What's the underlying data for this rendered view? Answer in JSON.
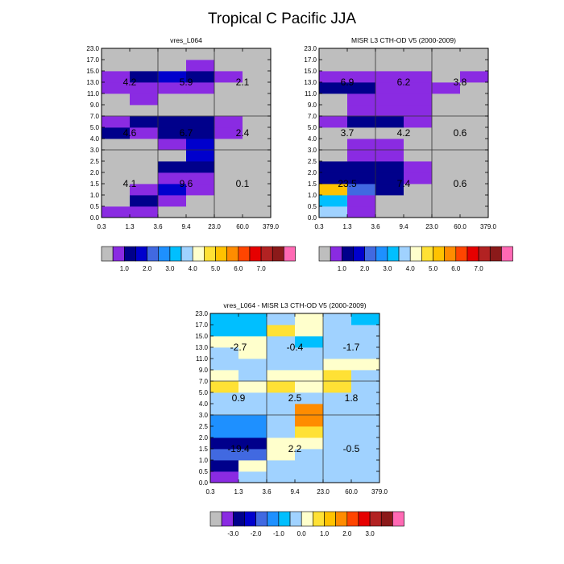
{
  "title": "Tropical C Pacific JJA",
  "colors": {
    "c0": "#bebebe",
    "c1": "#8a2be2",
    "c2": "#00008b",
    "c3": "#0000cd",
    "c4": "#4169e1",
    "c5": "#1e90ff",
    "c6": "#00bfff",
    "c7": "#a0d2ff",
    "c8": "#ffffcc",
    "c9": "#ffe135",
    "c10": "#ffc200",
    "c11": "#ff8c00",
    "c12": "#ff4500",
    "c13": "#e60000",
    "c14": "#b22222",
    "c15": "#8b1a1a",
    "c16": "#ff69b4"
  },
  "chart_data": [
    {
      "type": "heatmap",
      "title": "vres_L064",
      "x_ticks": [
        "0.3",
        "1.3",
        "3.6",
        "9.4",
        "23.0",
        "60.0",
        "379.0"
      ],
      "y_ticks": [
        "0.0",
        "0.5",
        "1.0",
        "1.5",
        "2.0",
        "2.5",
        "3.0",
        "4.0",
        "5.0",
        "7.0",
        "9.0",
        "11.0",
        "13.0",
        "15.0",
        "17.0",
        "23.0"
      ],
      "colorbar_labels": [
        "1.0",
        "2.0",
        "3.0",
        "4.0",
        "5.0",
        "6.0",
        "7.0"
      ],
      "grid": [
        [
          "c1",
          "c1",
          "c0",
          "c0",
          "c0",
          "c0"
        ],
        [
          "c0",
          "c2",
          "c1",
          "c0",
          "c0",
          "c0"
        ],
        [
          "c0",
          "c1",
          "c3",
          "c1",
          "c0",
          "c0"
        ],
        [
          "c0",
          "c0",
          "c1",
          "c1",
          "c0",
          "c0"
        ],
        [
          "c0",
          "c0",
          "c2",
          "c2",
          "c0",
          "c0"
        ],
        [
          "c0",
          "c0",
          "c0",
          "c3",
          "c0",
          "c0"
        ],
        [
          "c0",
          "c0",
          "c1",
          "c3",
          "c0",
          "c0"
        ],
        [
          "c2",
          "c1",
          "c2",
          "c2",
          "c1",
          "c0"
        ],
        [
          "c1",
          "c2",
          "c2",
          "c2",
          "c1",
          "c0"
        ],
        [
          "c0",
          "c0",
          "c0",
          "c0",
          "c0",
          "c0"
        ],
        [
          "c0",
          "c1",
          "c0",
          "c0",
          "c0",
          "c0"
        ],
        [
          "c1",
          "c1",
          "c1",
          "c1",
          "c0",
          "c0"
        ],
        [
          "c1",
          "c2",
          "c3",
          "c2",
          "c1",
          "c0"
        ],
        [
          "c0",
          "c0",
          "c0",
          "c1",
          "c0",
          "c0"
        ],
        [
          "c0",
          "c0",
          "c0",
          "c0",
          "c0",
          "c0"
        ]
      ],
      "annotations": [
        {
          "col": 0.5,
          "row": 12,
          "text": "4.2"
        },
        {
          "col": 2.5,
          "row": 12,
          "text": "5.9"
        },
        {
          "col": 4.5,
          "row": 12,
          "text": "2.1"
        },
        {
          "col": 0.5,
          "row": 7.5,
          "text": "4.6"
        },
        {
          "col": 2.5,
          "row": 7.5,
          "text": "6.7"
        },
        {
          "col": 4.5,
          "row": 7.5,
          "text": "2.4"
        },
        {
          "col": 0.5,
          "row": 3,
          "text": "4.1"
        },
        {
          "col": 2.5,
          "row": 3,
          "text": "9.6"
        },
        {
          "col": 4.5,
          "row": 3,
          "text": "0.1"
        }
      ]
    },
    {
      "type": "heatmap",
      "title": "MISR L3 CTH-OD V5 (2000-2009)",
      "x_ticks": [
        "0.3",
        "1.3",
        "3.6",
        "9.4",
        "23.0",
        "60.0",
        "379.0"
      ],
      "y_ticks": [
        "0.0",
        "0.5",
        "1.0",
        "1.5",
        "2.0",
        "2.5",
        "3.0",
        "4.0",
        "5.0",
        "7.0",
        "9.0",
        "11.0",
        "13.0",
        "15.0",
        "17.0",
        "23.0"
      ],
      "colorbar_labels": [
        "1.0",
        "2.0",
        "3.0",
        "4.0",
        "5.0",
        "6.0",
        "7.0"
      ],
      "grid": [
        [
          "c7",
          "c1",
          "c0",
          "c0",
          "c0",
          "c0"
        ],
        [
          "c6",
          "c1",
          "c0",
          "c0",
          "c0",
          "c0"
        ],
        [
          "c10",
          "c4",
          "c2",
          "c0",
          "c0",
          "c0"
        ],
        [
          "c2",
          "c2",
          "c2",
          "c1",
          "c0",
          "c0"
        ],
        [
          "c2",
          "c2",
          "c2",
          "c1",
          "c0",
          "c0"
        ],
        [
          "c0",
          "c1",
          "c1",
          "c0",
          "c0",
          "c0"
        ],
        [
          "c0",
          "c1",
          "c1",
          "c0",
          "c0",
          "c0"
        ],
        [
          "c0",
          "c0",
          "c0",
          "c0",
          "c0",
          "c0"
        ],
        [
          "c1",
          "c2",
          "c2",
          "c1",
          "c0",
          "c0"
        ],
        [
          "c0",
          "c1",
          "c1",
          "c1",
          "c0",
          "c0"
        ],
        [
          "c0",
          "c1",
          "c1",
          "c1",
          "c0",
          "c0"
        ],
        [
          "c2",
          "c2",
          "c1",
          "c1",
          "c1",
          "c0"
        ],
        [
          "c1",
          "c1",
          "c1",
          "c1",
          "c0",
          "c1"
        ],
        [
          "c0",
          "c0",
          "c0",
          "c0",
          "c0",
          "c0"
        ],
        [
          "c0",
          "c0",
          "c0",
          "c0",
          "c0",
          "c0"
        ]
      ],
      "annotations": [
        {
          "col": 0.5,
          "row": 12,
          "text": "6.9"
        },
        {
          "col": 2.5,
          "row": 12,
          "text": "6.2"
        },
        {
          "col": 4.5,
          "row": 12,
          "text": "3.8"
        },
        {
          "col": 0.5,
          "row": 7.5,
          "text": "3.7"
        },
        {
          "col": 2.5,
          "row": 7.5,
          "text": "4.2"
        },
        {
          "col": 4.5,
          "row": 7.5,
          "text": "0.6"
        },
        {
          "col": 0.5,
          "row": 3,
          "text": "23.5"
        },
        {
          "col": 2.5,
          "row": 3,
          "text": "7.4"
        },
        {
          "col": 4.5,
          "row": 3,
          "text": "0.6"
        }
      ]
    },
    {
      "type": "heatmap",
      "title": "vres_L064 - MISR L3 CTH-OD V5 (2000-2009)",
      "x_ticks": [
        "0.3",
        "1.3",
        "3.6",
        "9.4",
        "23.0",
        "60.0",
        "379.0"
      ],
      "y_ticks": [
        "0.0",
        "0.5",
        "1.0",
        "1.5",
        "2.0",
        "2.5",
        "3.0",
        "4.0",
        "5.0",
        "7.0",
        "9.0",
        "11.0",
        "13.0",
        "15.0",
        "17.0",
        "23.0"
      ],
      "colorbar_labels": [
        "-3.0",
        "-2.0",
        "-1.0",
        "0.0",
        "1.0",
        "2.0",
        "3.0"
      ],
      "grid": [
        [
          "c1",
          "c7",
          "c7",
          "c7",
          "c7",
          "c7"
        ],
        [
          "c2",
          "c8",
          "c7",
          "c7",
          "c7",
          "c7"
        ],
        [
          "c4",
          "c4",
          "c8",
          "c7",
          "c7",
          "c7"
        ],
        [
          "c2",
          "c2",
          "c8",
          "c8",
          "c7",
          "c7"
        ],
        [
          "c5",
          "c5",
          "c7",
          "c9",
          "c7",
          "c7"
        ],
        [
          "c5",
          "c5",
          "c7",
          "c11",
          "c7",
          "c7"
        ],
        [
          "c7",
          "c7",
          "c7",
          "c11",
          "c7",
          "c7"
        ],
        [
          "c7",
          "c7",
          "c7",
          "c7",
          "c7",
          "c7"
        ],
        [
          "c9",
          "c8",
          "c9",
          "c8",
          "c9",
          "c7"
        ],
        [
          "c8",
          "c7",
          "c8",
          "c8",
          "c9",
          "c7"
        ],
        [
          "c7",
          "c7",
          "c7",
          "c7",
          "c8",
          "c8"
        ],
        [
          "c7",
          "c8",
          "c7",
          "c7",
          "c7",
          "c7"
        ],
        [
          "c8",
          "c8",
          "c7",
          "c6",
          "c7",
          "c7"
        ],
        [
          "c6",
          "c6",
          "c9",
          "c8",
          "c7",
          "c7"
        ],
        [
          "c6",
          "c6",
          "c7",
          "c8",
          "c7",
          "c6"
        ]
      ],
      "annotations": [
        {
          "col": 0.5,
          "row": 12,
          "text": "-2.7"
        },
        {
          "col": 2.5,
          "row": 12,
          "text": "-0.4"
        },
        {
          "col": 4.5,
          "row": 12,
          "text": "-1.7"
        },
        {
          "col": 0.5,
          "row": 7.5,
          "text": "0.9"
        },
        {
          "col": 2.5,
          "row": 7.5,
          "text": "2.5"
        },
        {
          "col": 4.5,
          "row": 7.5,
          "text": "1.8"
        },
        {
          "col": 0.5,
          "row": 3,
          "text": "-19.4"
        },
        {
          "col": 2.5,
          "row": 3,
          "text": "2.2"
        },
        {
          "col": 4.5,
          "row": 3,
          "text": "-0.5"
        }
      ]
    }
  ]
}
